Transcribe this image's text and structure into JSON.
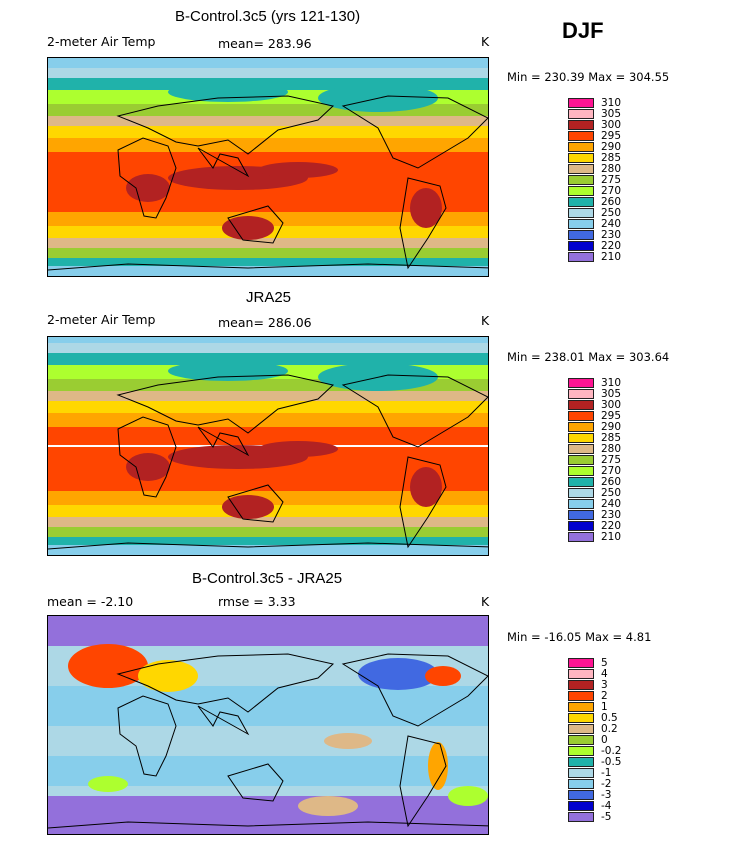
{
  "season": "DJF",
  "panels": [
    {
      "title": "B-Control.3c5 (yrs 121-130)",
      "left_label": "2-meter Air Temp",
      "center_label": "mean= 283.96",
      "unit": "K",
      "minmax": "Min = 230.39 Max = 304.55",
      "legend_labels": [
        "310",
        "305",
        "300",
        "295",
        "290",
        "285",
        "280",
        "275",
        "270",
        "260",
        "250",
        "240",
        "230",
        "220",
        "210"
      ],
      "kind": "temp"
    },
    {
      "title": "JRA25",
      "left_label": "2-meter Air Temp",
      "center_label": "mean= 286.06",
      "unit": "K",
      "minmax": "Min = 238.01 Max = 303.64",
      "legend_labels": [
        "310",
        "305",
        "300",
        "295",
        "290",
        "285",
        "280",
        "275",
        "270",
        "260",
        "250",
        "240",
        "230",
        "220",
        "210"
      ],
      "kind": "temp"
    },
    {
      "title": "B-Control.3c5 - JRA25",
      "left_label": "mean =   -2.10",
      "center_label": "rmse =    3.33",
      "unit": "K",
      "minmax": "Min = -16.05 Max =   4.81",
      "legend_labels": [
        "5",
        "4",
        "3",
        "2",
        "1",
        "0.5",
        "0.2",
        "0",
        "-0.2",
        "-0.5",
        "-1",
        "-2",
        "-3",
        "-4",
        "-5"
      ],
      "kind": "diff"
    }
  ],
  "legend_colors": [
    "#ff1493",
    "#ffb6c1",
    "#b22222",
    "#ff4500",
    "#ffa500",
    "#ffd700",
    "#deb887",
    "#9acd32",
    "#adff2f",
    "#20b2aa",
    "#add8e6",
    "#87ceeb",
    "#4169e1",
    "#0000cd",
    "#9370db"
  ]
}
